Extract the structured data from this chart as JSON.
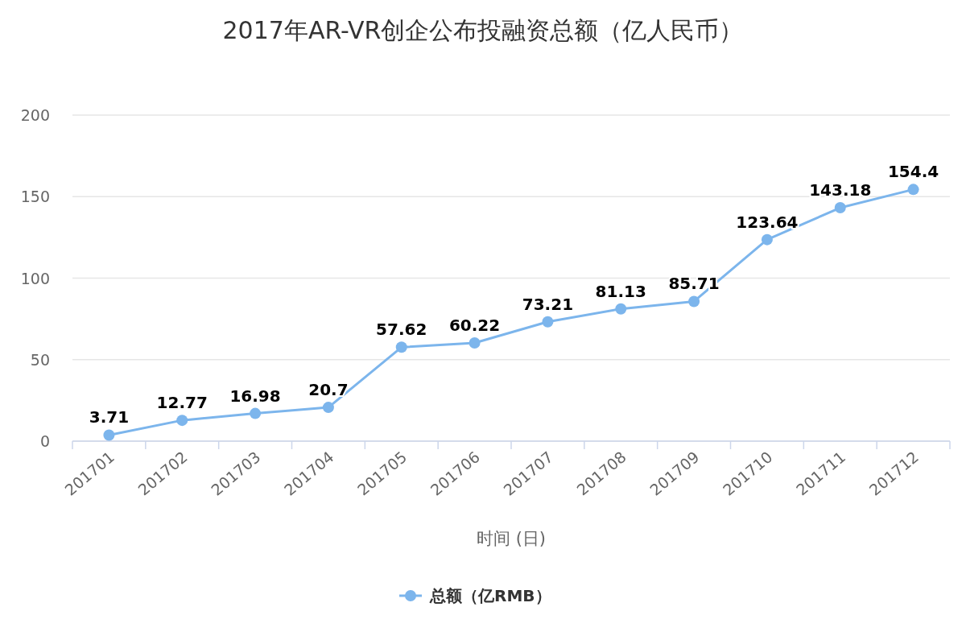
{
  "chart_data": {
    "type": "line",
    "title": "2017年AR-VR创企公布投融资总额（亿人民币）",
    "xlabel": "时间 (日)",
    "categories": [
      "201701",
      "201702",
      "201703",
      "201704",
      "201705",
      "201706",
      "201707",
      "201708",
      "201709",
      "201710",
      "201711",
      "201712"
    ],
    "series": [
      {
        "name": "总额（亿RMB）",
        "color": "#7cb5ec",
        "values": [
          3.71,
          12.77,
          16.98,
          20.7,
          57.62,
          60.22,
          73.21,
          81.13,
          85.71,
          123.64,
          143.18,
          154.4
        ]
      }
    ],
    "ylim": [
      0,
      200
    ],
    "yticks": [
      0,
      50,
      100,
      150,
      200
    ],
    "grid": "y",
    "legend": "bottom",
    "marker": "circle",
    "line_style": "solid",
    "data_labels": true
  }
}
